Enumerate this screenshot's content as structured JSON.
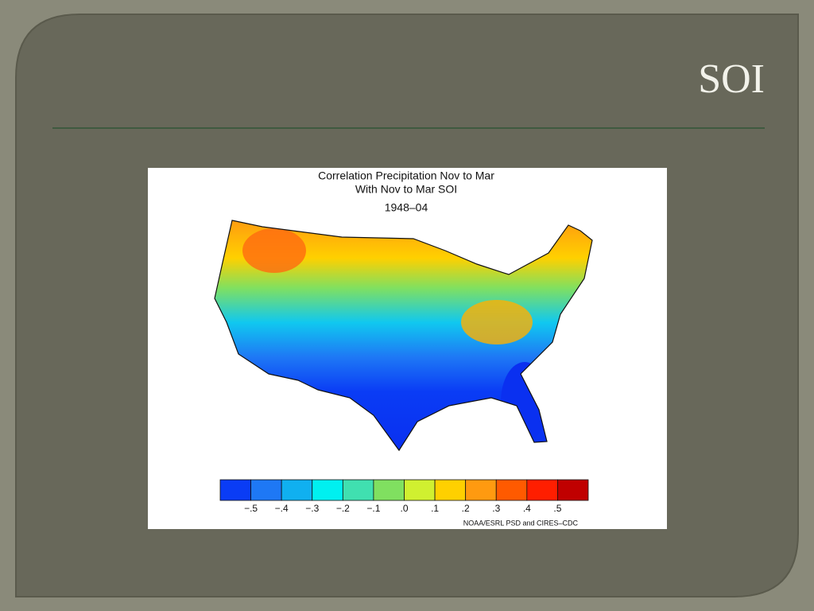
{
  "slide": {
    "title": "SOI"
  },
  "figure": {
    "title_lines": [
      "Correlation Precipitation Nov to Mar",
      "With Nov to Mar SOI",
      "1948–04"
    ],
    "colorbar": {
      "colors": [
        "#0a3cf5",
        "#1e78f5",
        "#10b0f0",
        "#00f0f0",
        "#40e0b0",
        "#80e060",
        "#d0f030",
        "#ffd000",
        "#ff9a10",
        "#ff5a00",
        "#ff1e00",
        "#c00000"
      ],
      "labels": [
        "−.5",
        "−.4",
        "−.3",
        "−.2",
        "−.1",
        ".0",
        ".1",
        ".2",
        ".3",
        ".4",
        ".5"
      ]
    },
    "credit": "NOAA/ESRL PSD and CIRES–CDC"
  }
}
